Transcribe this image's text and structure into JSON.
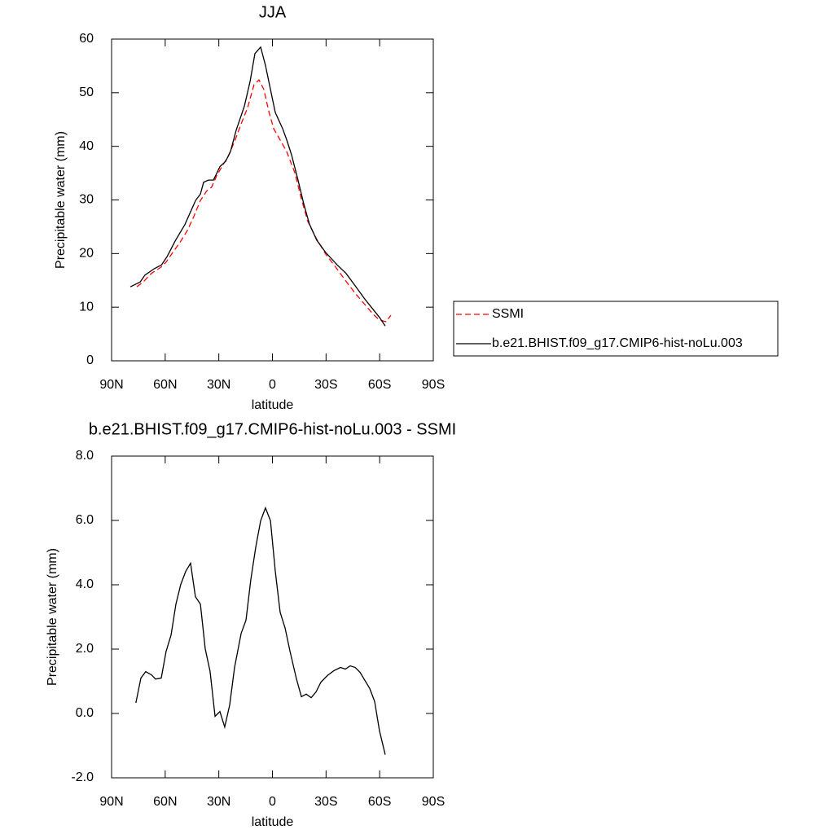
{
  "chart_data": [
    {
      "type": "line",
      "title": "JJA",
      "xlabel": "latitude",
      "ylabel": "Precipitable water (mm)",
      "xlim": [
        90,
        -90
      ],
      "xticks": [
        {
          "value": 90,
          "label": "90N"
        },
        {
          "value": 60,
          "label": "60N"
        },
        {
          "value": 30,
          "label": "30N"
        },
        0,
        {
          "value": -30,
          "label": "30S"
        },
        {
          "value": -60,
          "label": "60S"
        },
        {
          "value": -90,
          "label": "90S"
        }
      ],
      "ylim": [
        0,
        60
      ],
      "yticks": [
        0,
        10,
        20,
        30,
        40,
        50,
        60
      ],
      "legend": "right",
      "series": [
        {
          "name": "SSMI",
          "color": "#ff0000",
          "linestyle": "dashed",
          "x": [
            75.9,
            72.3,
            67.7,
            62.2,
            59.5,
            55.8,
            51.3,
            47.6,
            44,
            40.3,
            36.7,
            34,
            31.2,
            27.6,
            24.8,
            21.2,
            17.5,
            13.9,
            10.3,
            7.5,
            4.8,
            2.1,
            -0.7,
            -4.3,
            -8,
            -12.5,
            -16.2,
            -19.8,
            -24.4,
            -29.8,
            -35.3,
            -40.8,
            -46.3,
            -51.7,
            -56.3,
            -59.9,
            -63.6,
            -66.3
          ],
          "values": [
            13.8,
            14.7,
            16.3,
            17.5,
            18.4,
            20.2,
            22.3,
            24.3,
            26.9,
            29.9,
            31.7,
            32.4,
            34.5,
            36.6,
            38.1,
            40.9,
            44.2,
            47.2,
            51.5,
            52.4,
            50.6,
            46.6,
            43.3,
            41.2,
            39,
            35.1,
            30.2,
            26,
            22.9,
            19.9,
            17.5,
            15,
            12.6,
            10.5,
            8.7,
            7.6,
            7.3,
            8.5
          ]
        },
        {
          "name": "b.e21.BHIST.f09_g17.CMIP6-hist-noLu.003",
          "color": "#000000",
          "linestyle": "solid",
          "x": [
            79.5,
            74,
            71.3,
            66,
            62,
            59,
            54.5,
            49,
            45.4,
            43,
            40.3,
            38.5,
            35.8,
            33,
            29.4,
            26.2,
            23.5,
            20.3,
            15.7,
            12.5,
            9.8,
            6.6,
            3.9,
            1.1,
            -1.6,
            -5.7,
            -8,
            -10.7,
            -14.4,
            -17.5,
            -20.7,
            -24.8,
            -29.8,
            -36.2,
            -41.2,
            -46.7,
            -51.7,
            -56.3,
            -59.9,
            -63.1
          ],
          "values": [
            13.8,
            14.7,
            16,
            17.2,
            17.9,
            19.4,
            22.3,
            25.4,
            28.1,
            29.9,
            31.1,
            33.3,
            33.7,
            33.7,
            36.2,
            37.2,
            39,
            43,
            47.5,
            52.1,
            57.3,
            58.5,
            55.1,
            50.6,
            46.3,
            43.3,
            41.2,
            38.4,
            33.6,
            29.3,
            25.5,
            22.5,
            20.2,
            17.9,
            16.3,
            13.8,
            11.5,
            9.6,
            8.1,
            6.5
          ]
        }
      ]
    },
    {
      "type": "line",
      "title": "b.e21.BHIST.f09_g17.CMIP6-hist-noLu.003 - SSMI",
      "xlabel": "latitude",
      "ylabel": "Precipitable water (mm)",
      "xlim": [
        90,
        -90
      ],
      "xticks": [
        {
          "value": 90,
          "label": "90N"
        },
        {
          "value": 60,
          "label": "60N"
        },
        {
          "value": 30,
          "label": "30N"
        },
        0,
        {
          "value": -30,
          "label": "30S"
        },
        {
          "value": -60,
          "label": "60S"
        },
        {
          "value": -90,
          "label": "90S"
        }
      ],
      "ylim": [
        -2,
        8
      ],
      "yticks": [
        {
          "value": -2,
          "label": "-2.0"
        },
        {
          "value": 0,
          "label": "0.0"
        },
        {
          "value": 2,
          "label": "2.0"
        },
        {
          "value": 4,
          "label": "4.0"
        },
        {
          "value": 6,
          "label": "6.0"
        },
        {
          "value": 8,
          "label": "8.0"
        }
      ],
      "color": "#000000",
      "linestyle": "solid",
      "x": [
        76.4,
        73.6,
        70.9,
        67.7,
        65.4,
        62.2,
        59.5,
        56.7,
        54,
        51.3,
        48.5,
        45.8,
        43.1,
        40.3,
        37.6,
        34.9,
        32.1,
        29.4,
        26.7,
        23.9,
        21.2,
        17.5,
        14.8,
        12.1,
        9.3,
        6.6,
        3.9,
        1.1,
        -1.6,
        -4.3,
        -7.1,
        -9.8,
        -13.4,
        -16.2,
        -18.9,
        -21.7,
        -24.4,
        -27.1,
        -30.8,
        -34.4,
        -38.1,
        -40.8,
        -43.5,
        -46.3,
        -49,
        -51.7,
        -54.5,
        -57.2,
        -59.9,
        -63.1
      ],
      "values": [
        0.33,
        1.1,
        1.3,
        1.2,
        1.07,
        1.1,
        1.93,
        2.44,
        3.4,
        4.01,
        4.42,
        4.67,
        3.63,
        3.4,
        2.01,
        1.31,
        -0.09,
        0.06,
        -0.42,
        0.27,
        1.43,
        2.49,
        2.9,
        4.16,
        5.18,
        5.99,
        6.39,
        5.99,
        4.42,
        3.15,
        2.65,
        1.94,
        1.08,
        0.52,
        0.6,
        0.49,
        0.67,
        0.97,
        1.18,
        1.33,
        1.43,
        1.38,
        1.48,
        1.43,
        1.28,
        1.03,
        0.77,
        0.37,
        -0.54,
        -1.28
      ]
    }
  ]
}
